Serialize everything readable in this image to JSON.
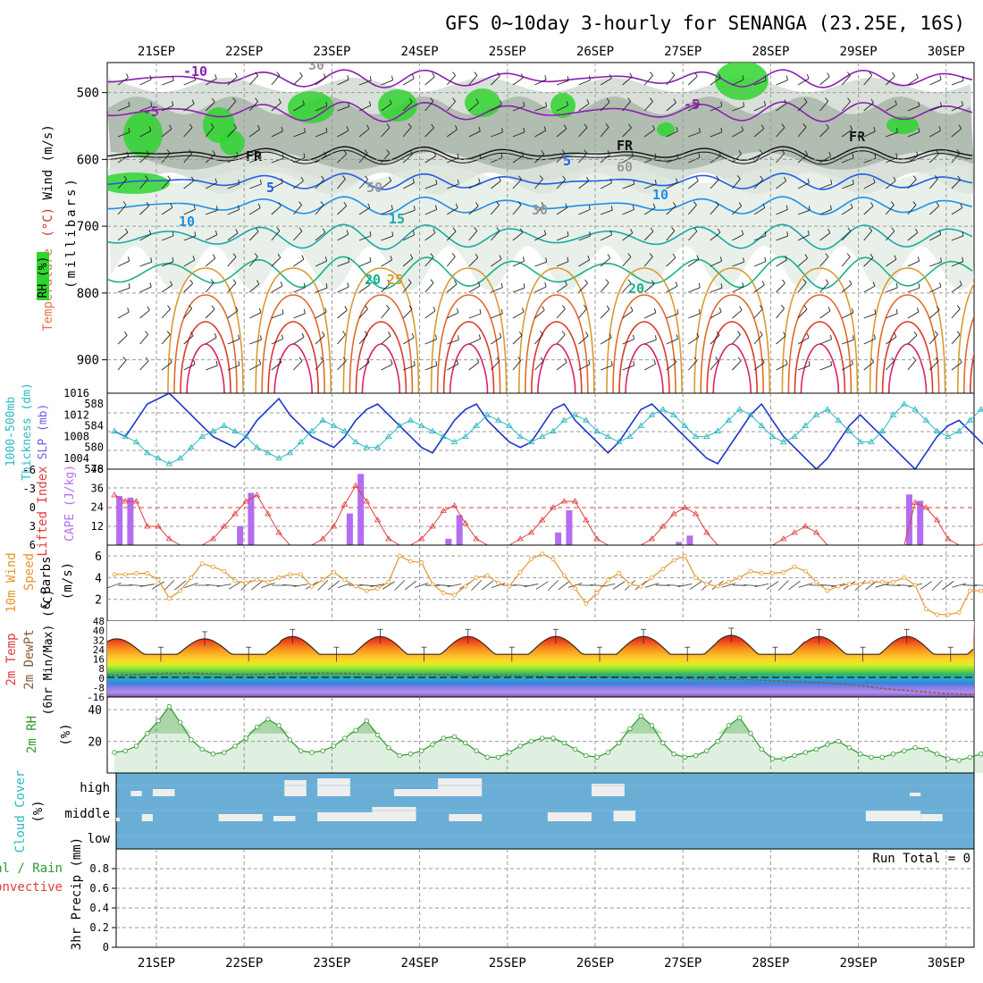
{
  "title": "GFS 0~10day 3-hourly for SENANGA (23.25E, 16S)",
  "dates": [
    "21SEP",
    "22SEP",
    "23SEP",
    "24SEP",
    "25SEP",
    "26SEP",
    "27SEP",
    "28SEP",
    "29SEP",
    "30SEP"
  ],
  "colors": {
    "rh_green": "#2fd52f",
    "rh_grey": "#9aa89a",
    "slp": "#1c36c9",
    "thickness": "#2bb8c2",
    "cape": "#b46cf0",
    "lifted": "#e03b3b",
    "wind10m": "#e3962a",
    "dewpt": "#8a5a3a",
    "rh2m": "#2d9a2d",
    "cloud_sky": "#6aaed6",
    "cloud": "#eeeeee",
    "purple": "#8b1fb0",
    "blue": "#1f5ee6",
    "teal": "#19a9a9",
    "orange": "#d99a30",
    "red": "#d93a2a",
    "magenta": "#d9206a"
  },
  "panel_labels": {
    "upper": {
      "wind": "Wind (m/s)",
      "temperature": "Temperature",
      "temp_unit": "(°C)",
      "rh": "RH (%)",
      "pressure": "(millibars)"
    },
    "pressure_ticks": [
      "500",
      "600",
      "700",
      "800",
      "900"
    ],
    "slp": {
      "l1": "1000-500mb",
      "l2": "Thickness (dm)",
      "l3": "SLP (mb)",
      "left_ticks": [
        "588",
        "584",
        "580",
        "576"
      ],
      "right_ticks": [
        "1016",
        "1012",
        "1008",
        "1004"
      ]
    },
    "cape": {
      "l1": "Lifted Index",
      "l2": "CAPE (J/kg)",
      "left_ticks": [
        "-6",
        "-3",
        "0",
        "3",
        "6"
      ],
      "right_ticks": [
        "48",
        "36",
        "24",
        "12"
      ]
    },
    "wind10m": {
      "l1": "10m Wind",
      "l2": "Speed",
      "l3": "& Barbs",
      "unit": "(m/s)",
      "ticks": [
        "6",
        "4",
        "2"
      ]
    },
    "temp2m": {
      "l1": "2m Temp",
      "l2": "2m DewPt",
      "l3": "(6hr Min/Max) (°C)",
      "ticks": [
        "48",
        "40",
        "32",
        "24",
        "16",
        "8",
        "0",
        "-8",
        "-16"
      ]
    },
    "rh2m": {
      "l1": "2m RH",
      "unit": "(%)",
      "ticks": [
        "40",
        "20"
      ]
    },
    "cloud": {
      "l1": "Cloud Cover",
      "unit": "(%)",
      "levels": [
        "high",
        "middle",
        "low"
      ]
    },
    "precip": {
      "l1": "Total / Rain",
      "l2": "Convective",
      "l3": "3hr Precip (mm)",
      "ticks": [
        "0.8",
        "0.6",
        "0.4",
        "0.2",
        "0"
      ],
      "run_total": "Run Total = 0"
    }
  },
  "contour_labels": [
    "-10",
    "-5",
    "-5",
    "FR",
    "FR",
    "FR",
    "5",
    "5",
    "10",
    "10",
    "15",
    "20",
    "20",
    "25",
    "30",
    "50",
    "60",
    "30"
  ],
  "chart_data": [
    {
      "type": "line",
      "title": "SLP and 1000-500mb Thickness",
      "series": [
        {
          "name": "SLP (mb)",
          "values": [
            1009,
            1008,
            1011,
            1014,
            1015,
            1016,
            1014,
            1012,
            1010,
            1008,
            1007,
            1006,
            1008,
            1011,
            1013,
            1015,
            1012,
            1010,
            1008,
            1007,
            1006,
            1008,
            1011,
            1013,
            1014,
            1012,
            1010,
            1008,
            1006,
            1005,
            1008,
            1011,
            1013,
            1014,
            1011,
            1009,
            1007,
            1006,
            1007,
            1010,
            1013,
            1014,
            1011,
            1009,
            1007,
            1005,
            1007,
            1010,
            1013,
            1014,
            1012,
            1010,
            1008,
            1006,
            1004,
            1003,
            1006,
            1009,
            1012,
            1014,
            1011,
            1008,
            1006,
            1004,
            1002,
            1004,
            1007,
            1010,
            1012,
            1010,
            1008,
            1006,
            1004,
            1002,
            1005,
            1008,
            1010,
            1011,
            1009,
            1007,
            1005,
            1003,
            1006,
            1008,
            1010,
            1011,
            1009,
            1007,
            1005,
            1004,
            1006,
            1008,
            1010,
            1011,
            1012,
            1013
          ],
          "axis": "right",
          "ylim": [
            1002,
            1016
          ]
        },
        {
          "name": "Thickness (dm)",
          "values": [
            583,
            582,
            581,
            579,
            578,
            577,
            578,
            580,
            582,
            583,
            584,
            583,
            582,
            580,
            579,
            578,
            579,
            581,
            583,
            585,
            584,
            583,
            581,
            580,
            580,
            582,
            584,
            585,
            584,
            583,
            582,
            581,
            582,
            584,
            586,
            585,
            584,
            582,
            581,
            582,
            583,
            585,
            586,
            585,
            583,
            582,
            581,
            582,
            584,
            586,
            587,
            586,
            584,
            582,
            582,
            583,
            585,
            587,
            586,
            584,
            582,
            581,
            582,
            584,
            586,
            587,
            585,
            583,
            581,
            581,
            583,
            586,
            588,
            587,
            585,
            583,
            582,
            583,
            585,
            587,
            586,
            584,
            582,
            582,
            583,
            585,
            586,
            585,
            583,
            582,
            582,
            584,
            586,
            585,
            583,
            582
          ],
          "axis": "left",
          "ylim": [
            576,
            590
          ]
        }
      ]
    },
    {
      "type": "bar",
      "title": "CAPE and Lifted Index",
      "cape_bars": [
        [
          0.5,
          31
        ],
        [
          1.5,
          30
        ],
        [
          11.5,
          12
        ],
        [
          12.5,
          33
        ],
        [
          21.5,
          20
        ],
        [
          22.5,
          45
        ],
        [
          30.5,
          4
        ],
        [
          31.5,
          19
        ],
        [
          40.5,
          8
        ],
        [
          41.5,
          22
        ],
        [
          51.5,
          2
        ],
        [
          52.5,
          6
        ],
        [
          72.5,
          32
        ],
        [
          73.5,
          28
        ]
      ],
      "lifted_index": [
        -2,
        -1,
        -1,
        3,
        3,
        5,
        6,
        6,
        6,
        5,
        3,
        1,
        -1,
        -2,
        1,
        4,
        6,
        6,
        6,
        5,
        3,
        -0.5,
        -3.5,
        -1,
        2,
        5,
        6,
        6,
        5,
        3,
        0.5,
        -0.3,
        2.5,
        5,
        6,
        6,
        6,
        5,
        4,
        2,
        0,
        -1,
        -1,
        2,
        5,
        6,
        6,
        6,
        6,
        5,
        3,
        1,
        0,
        1,
        4,
        6,
        6,
        6,
        6,
        6,
        6,
        5,
        4,
        3,
        4,
        6,
        6,
        6,
        6,
        6,
        6,
        6,
        6,
        -0.8,
        0,
        2,
        5,
        6,
        6,
        6,
        5,
        4,
        4,
        6,
        6,
        6,
        6,
        6,
        6,
        5,
        6,
        6,
        6,
        6,
        6,
        6
      ],
      "cape_ylim": [
        0,
        48
      ],
      "li_ylim": [
        -6,
        6
      ]
    },
    {
      "type": "line",
      "title": "10m Wind Speed",
      "values": [
        4.3,
        4.3,
        4.4,
        4.4,
        3.8,
        2.1,
        2.8,
        4.0,
        5.3,
        5.0,
        4.6,
        3.7,
        3.5,
        3.8,
        3.6,
        4.0,
        4.3,
        4.3,
        3.2,
        3.8,
        4.5,
        3.8,
        3.2,
        2.8,
        3.0,
        3.6,
        6.0,
        5.5,
        5.4,
        3.4,
        2.6,
        2.4,
        3.2,
        4.0,
        4.2,
        3.5,
        3.2,
        4.5,
        5.7,
        6.2,
        5.7,
        4.2,
        3.0,
        1.6,
        2.6,
        3.8,
        4.4,
        3.4,
        3.2,
        4.0,
        4.8,
        5.6,
        6.0,
        4.0,
        3.4,
        3.2,
        3.6,
        4.0,
        4.6,
        4.4,
        4.4,
        4.5,
        5.0,
        4.6,
        3.6,
        2.8,
        3.2,
        3.4,
        3.4,
        3.6,
        3.6,
        3.6,
        4.0,
        3.3,
        1.1,
        0.6,
        0.6,
        0.8,
        2.8,
        2.8,
        3.2,
        5.4,
        5.6,
        5.2,
        4.4,
        3.6,
        1.6,
        0.8,
        2.0,
        2.6,
        3.4,
        3.2,
        2.8,
        3.4,
        3.2,
        2.8,
        2.6,
        2.8,
        3.0,
        3.6,
        4.4
      ],
      "ylim": [
        0,
        7
      ]
    },
    {
      "type": "line",
      "title": "2m Temp / DewPt",
      "temp_peaks": [
        33,
        33,
        35,
        35,
        35,
        35,
        35,
        36,
        35,
        35
      ],
      "temp_min": 20,
      "dewpt": [
        2,
        3,
        4,
        4,
        3,
        3,
        4,
        4,
        4,
        3,
        3,
        3,
        2,
        2,
        2,
        1,
        1,
        1,
        0,
        0,
        -1,
        -1,
        -2,
        -3,
        -4,
        -6,
        -9,
        -11,
        -13,
        -14
      ],
      "ylim": [
        -16,
        48
      ]
    },
    {
      "type": "line",
      "title": "2m RH",
      "values": [
        13,
        14,
        17,
        25,
        33,
        42,
        32,
        21,
        15,
        12,
        13,
        17,
        22,
        29,
        34,
        30,
        21,
        14,
        13,
        14,
        17,
        22,
        27,
        33,
        24,
        16,
        11,
        12,
        14,
        18,
        22,
        23,
        19,
        14,
        10,
        10,
        13,
        17,
        20,
        22,
        22,
        19,
        15,
        11,
        10,
        13,
        19,
        28,
        36,
        30,
        19,
        12,
        10,
        11,
        14,
        20,
        30,
        35,
        25,
        15,
        9,
        9,
        11,
        13,
        15,
        18,
        20,
        16,
        12,
        10,
        10,
        12,
        14,
        16,
        15,
        12,
        9,
        8,
        10,
        12,
        14,
        15,
        13,
        10,
        7,
        6,
        7,
        8,
        9,
        10,
        9,
        7,
        7,
        8,
        10,
        12,
        9
      ],
      "ylim": [
        0,
        48
      ]
    },
    {
      "type": "bar",
      "title": "Cloud Cover",
      "high": [
        [
          2,
          3,
          30
        ],
        [
          4,
          6,
          40
        ],
        [
          16,
          18,
          90
        ],
        [
          19,
          22,
          100
        ],
        [
          26,
          30,
          40
        ],
        [
          30,
          34,
          100
        ],
        [
          44,
          47,
          70
        ],
        [
          73,
          74,
          20
        ]
      ],
      "middle": [
        [
          0,
          1,
          20
        ],
        [
          3,
          4,
          40
        ],
        [
          10,
          14,
          40
        ],
        [
          15,
          17,
          30
        ],
        [
          19,
          24,
          50
        ],
        [
          24,
          28,
          80
        ],
        [
          31,
          34,
          40
        ],
        [
          40,
          44,
          50
        ],
        [
          46,
          48,
          60
        ],
        [
          69,
          74,
          60
        ],
        [
          74,
          76,
          40
        ]
      ],
      "low": []
    },
    {
      "type": "bar",
      "title": "3hr Precip (mm)",
      "values": [],
      "ylim": [
        0,
        1
      ]
    }
  ]
}
